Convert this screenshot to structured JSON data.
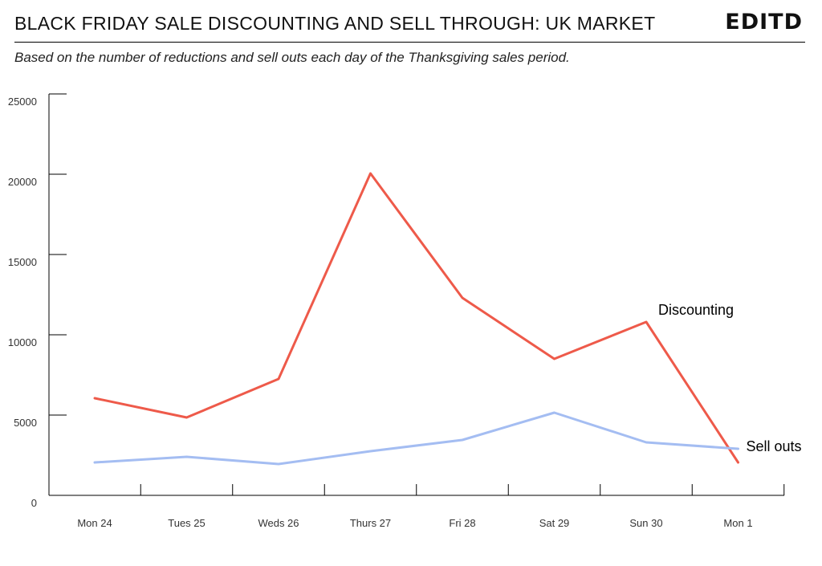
{
  "header": {
    "title": "BLACK FRIDAY SALE DISCOUNTING AND SELL THROUGH: UK MARKET",
    "logo": "EDITD",
    "subtitle": "Based on the number of reductions and sell outs each day of the Thanksgiving sales period."
  },
  "chart_data": {
    "type": "line",
    "title": "BLACK FRIDAY SALE DISCOUNTING AND SELL THROUGH: UK MARKET",
    "subtitle": "Based on the number of reductions and sell outs each day of the Thanksgiving sales period.",
    "xlabel": "",
    "ylabel": "",
    "categories": [
      "Mon 24",
      "Tues 25",
      "Weds 26",
      "Thurs 27",
      "Fri 28",
      "Sat 29",
      "Sun 30",
      "Mon 1"
    ],
    "ylim": [
      0,
      25000
    ],
    "yticks": [
      "0",
      "5000",
      "10000",
      "15000",
      "20000",
      "25000"
    ],
    "grid": false,
    "legend": "inline labels at line ends",
    "series": [
      {
        "name": "Discounting",
        "color": "#ee5a4a",
        "values": [
          6050,
          4850,
          7250,
          20050,
          12300,
          8500,
          10800,
          2050
        ]
      },
      {
        "name": "Sell outs",
        "color": "#a4bdf2",
        "values": [
          2050,
          2400,
          1950,
          2750,
          3450,
          5150,
          3300,
          2900
        ]
      }
    ]
  }
}
